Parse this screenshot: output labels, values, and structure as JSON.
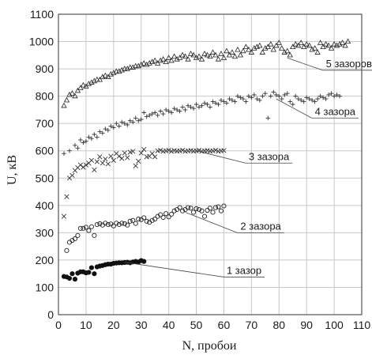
{
  "chart_data": {
    "type": "scatter",
    "xlabel": "N, пробои",
    "ylabel": "U, кВ",
    "xlim": [
      0,
      110
    ],
    "ylim": [
      0,
      1100
    ],
    "xticks": [
      0,
      10,
      20,
      30,
      40,
      50,
      60,
      70,
      80,
      90,
      100,
      110
    ],
    "yticks": [
      0,
      100,
      200,
      300,
      400,
      500,
      600,
      700,
      800,
      900,
      1000,
      1100
    ],
    "grid": true,
    "annotations": [
      {
        "text": "1 зазор",
        "series": 0,
        "anchor_x": 24,
        "anchor_y": 192,
        "text_x": 61,
        "text_y": 138
      },
      {
        "text": "2 зазора",
        "series": 1,
        "anchor_x": 46,
        "anchor_y": 375,
        "text_x": 66,
        "text_y": 300
      },
      {
        "text": "3 зазора",
        "series": 2,
        "anchor_x": 50,
        "anchor_y": 600,
        "text_x": 69,
        "text_y": 555
      },
      {
        "text": "4 зазора",
        "series": 3,
        "anchor_x": 79,
        "anchor_y": 790,
        "text_x": 93,
        "text_y": 720
      },
      {
        "text": "5 зазоров",
        "series": 4,
        "anchor_x": 83,
        "anchor_y": 940,
        "text_x": 97,
        "text_y": 895
      }
    ],
    "series": [
      {
        "marker": "filled-circle",
        "x": [
          2,
          3,
          4,
          5,
          6,
          7,
          8,
          9,
          10,
          11,
          12,
          13,
          14,
          15,
          16,
          17,
          18,
          19,
          20,
          21,
          22,
          23,
          24,
          25,
          26,
          27,
          28,
          29,
          30,
          31
        ],
        "y": [
          140,
          138,
          133,
          150,
          130,
          152,
          157,
          157,
          153,
          155,
          172,
          150,
          175,
          178,
          180,
          183,
          185,
          185,
          188,
          189,
          190,
          190,
          191,
          192,
          190,
          193,
          195,
          193,
          198,
          195
        ]
      },
      {
        "marker": "open-circle",
        "x": [
          3,
          4,
          5,
          6,
          7,
          8,
          9,
          10,
          11,
          12,
          13,
          14,
          15,
          16,
          17,
          18,
          19,
          20,
          21,
          22,
          23,
          24,
          25,
          26,
          27,
          28,
          29,
          30,
          31,
          32,
          33,
          34,
          35,
          36,
          37,
          38,
          39,
          40,
          41,
          42,
          43,
          44,
          45,
          46,
          47,
          48,
          49,
          50,
          51,
          52,
          53,
          54,
          55,
          56,
          57,
          58,
          59,
          60
        ],
        "y": [
          235,
          265,
          272,
          278,
          290,
          316,
          316,
          320,
          308,
          322,
          290,
          330,
          333,
          328,
          335,
          330,
          332,
          325,
          335,
          330,
          335,
          333,
          328,
          342,
          345,
          334,
          350,
          348,
          355,
          342,
          338,
          345,
          350,
          360,
          366,
          356,
          370,
          358,
          368,
          380,
          385,
          392,
          380,
          385,
          392,
          390,
          375,
          388,
          385,
          380,
          360,
          382,
          390,
          375,
          392,
          395,
          380,
          398
        ]
      },
      {
        "marker": "x",
        "x": [
          2,
          3,
          4,
          5,
          6,
          7,
          8,
          9,
          10,
          11,
          12,
          13,
          14,
          15,
          16,
          17,
          18,
          19,
          20,
          21,
          22,
          23,
          24,
          25,
          26,
          27,
          28,
          29,
          30,
          31,
          32,
          33,
          34,
          35,
          36,
          37,
          38,
          39,
          40,
          41,
          42,
          43,
          44,
          45,
          46,
          47,
          48,
          49,
          50,
          51,
          52,
          53,
          54,
          55,
          56,
          57,
          58,
          59,
          60
        ],
        "y": [
          360,
          432,
          500,
          510,
          528,
          538,
          548,
          540,
          548,
          555,
          565,
          530,
          560,
          578,
          555,
          570,
          552,
          580,
          565,
          590,
          580,
          572,
          592,
          575,
          595,
          598,
          545,
          562,
          592,
          605,
          578,
          580,
          590,
          578,
          600,
          602,
          598,
          600,
          602,
          598,
          601,
          599,
          600,
          602,
          598,
          600,
          601,
          599,
          600,
          602,
          598,
          600,
          601,
          599,
          600,
          602,
          598,
          600,
          601
        ]
      },
      {
        "marker": "plus",
        "x": [
          2,
          4,
          6,
          7,
          8,
          9,
          10,
          11,
          12,
          13,
          14,
          15,
          16,
          17,
          18,
          19,
          20,
          21,
          22,
          23,
          24,
          25,
          26,
          27,
          28,
          29,
          30,
          31,
          32,
          33,
          34,
          35,
          36,
          37,
          38,
          39,
          40,
          41,
          42,
          43,
          44,
          45,
          46,
          47,
          48,
          49,
          50,
          51,
          52,
          53,
          54,
          55,
          56,
          57,
          58,
          59,
          60,
          61,
          62,
          63,
          64,
          65,
          66,
          67,
          68,
          69,
          70,
          71,
          72,
          73,
          74,
          75,
          76,
          77,
          78,
          79,
          80,
          81,
          82,
          83,
          84,
          85,
          86,
          87,
          88,
          89,
          90,
          91,
          92,
          93,
          94,
          95,
          96,
          97,
          98,
          99,
          100,
          101,
          102
        ],
        "y": [
          590,
          600,
          620,
          610,
          640,
          630,
          635,
          650,
          645,
          660,
          650,
          670,
          665,
          680,
          675,
          690,
          685,
          700,
          690,
          705,
          700,
          695,
          710,
          705,
          720,
          710,
          715,
          740,
          725,
          730,
          735,
          740,
          730,
          745,
          735,
          750,
          745,
          740,
          755,
          750,
          745,
          760,
          750,
          765,
          760,
          755,
          770,
          760,
          765,
          775,
          770,
          760,
          780,
          775,
          770,
          785,
          780,
          775,
          790,
          785,
          780,
          800,
          795,
          790,
          780,
          800,
          795,
          805,
          790,
          785,
          800,
          810,
          720,
          800,
          815,
          805,
          800,
          790,
          805,
          810,
          780,
          770,
          800,
          790,
          785,
          780,
          795,
          790,
          785,
          780,
          790,
          800,
          795,
          790,
          805,
          810,
          800,
          805,
          800
        ]
      },
      {
        "marker": "triangle",
        "x": [
          2,
          3,
          4,
          5,
          6,
          7,
          8,
          9,
          10,
          11,
          12,
          13,
          14,
          15,
          16,
          17,
          18,
          19,
          20,
          21,
          22,
          23,
          24,
          25,
          26,
          27,
          28,
          29,
          30,
          31,
          32,
          33,
          34,
          35,
          36,
          37,
          38,
          39,
          40,
          41,
          42,
          43,
          44,
          45,
          46,
          47,
          48,
          49,
          50,
          51,
          52,
          53,
          54,
          55,
          56,
          57,
          58,
          59,
          60,
          61,
          62,
          63,
          64,
          65,
          66,
          67,
          68,
          69,
          70,
          71,
          72,
          73,
          74,
          75,
          76,
          77,
          78,
          79,
          80,
          81,
          82,
          83,
          84,
          85,
          86,
          87,
          88,
          89,
          90,
          91,
          92,
          93,
          94,
          95,
          96,
          97,
          98,
          99,
          100,
          101,
          102,
          103,
          104,
          105
        ],
        "y": [
          765,
          785,
          805,
          810,
          800,
          820,
          830,
          840,
          835,
          845,
          850,
          855,
          860,
          860,
          870,
          875,
          870,
          880,
          885,
          890,
          890,
          895,
          900,
          900,
          905,
          905,
          910,
          910,
          915,
          920,
          915,
          920,
          925,
          930,
          920,
          930,
          935,
          925,
          940,
          930,
          945,
          935,
          940,
          950,
          945,
          935,
          955,
          950,
          940,
          945,
          935,
          955,
          950,
          945,
          960,
          950,
          935,
          955,
          940,
          965,
          950,
          960,
          945,
          970,
          950,
          965,
          980,
          970,
          960,
          975,
          980,
          985,
          960,
          975,
          980,
          990,
          970,
          985,
          995,
          975,
          960,
          965,
          950,
          980,
          990,
          985,
          995,
          980,
          990,
          985,
          970,
          975,
          960,
          995,
          980,
          990,
          985,
          975,
          990,
          985,
          990,
          995,
          985,
          1000
        ]
      }
    ]
  }
}
